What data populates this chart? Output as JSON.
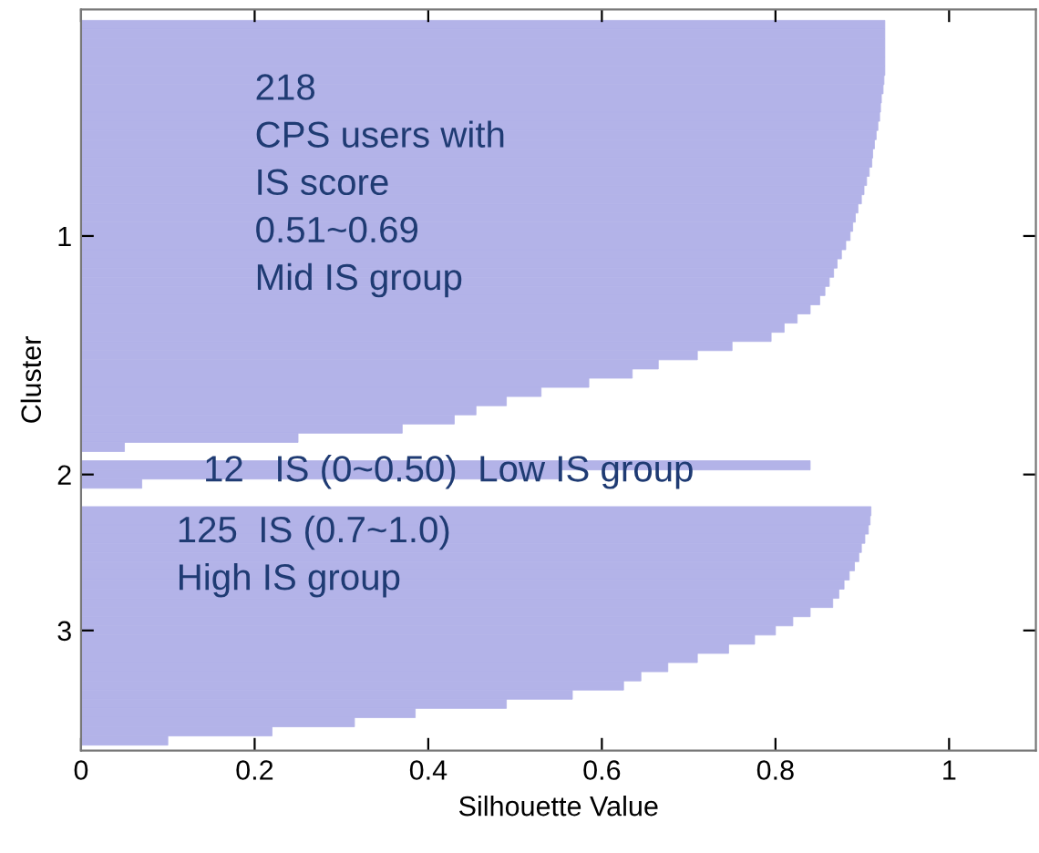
{
  "chart_data": {
    "type": "bar",
    "orientation": "horizontal",
    "color": "#b3b3e8",
    "xlabel": "Silhouette Value",
    "ylabel": "Cluster",
    "categories": [
      null,
      null,
      null,
      null,
      null,
      null,
      null,
      null,
      null,
      null,
      null,
      null,
      null,
      null,
      null,
      null,
      null,
      null,
      null,
      null,
      null,
      null,
      null,
      "1",
      null,
      null,
      null,
      null,
      null,
      null,
      null,
      null,
      null,
      null,
      null,
      null,
      null,
      null,
      null,
      null,
      null,
      null,
      null,
      null,
      null,
      null,
      null,
      null,
      null,
      "2",
      null,
      null,
      null,
      null,
      null,
      null,
      null,
      null,
      null,
      null,
      null,
      null,
      null,
      null,
      null,
      null,
      "3",
      null,
      null,
      null,
      null,
      null,
      null,
      null,
      null,
      null,
      null,
      null,
      null
    ],
    "values": [
      0.926,
      0.926,
      0.926,
      0.926,
      0.926,
      0.926,
      0.925,
      0.924,
      0.922,
      0.921,
      0.92,
      0.918,
      0.916,
      0.914,
      0.912,
      0.911,
      0.908,
      0.905,
      0.902,
      0.899,
      0.895,
      0.892,
      0.889,
      0.886,
      0.881,
      0.876,
      0.871,
      0.867,
      0.862,
      0.857,
      0.851,
      0.84,
      0.825,
      0.81,
      0.795,
      0.75,
      0.71,
      0.665,
      0.635,
      0.585,
      0.53,
      0.49,
      0.455,
      0.43,
      0.37,
      0.25,
      0.05,
      null,
      0.84,
      0.55,
      0.07,
      null,
      null,
      0.91,
      0.909,
      0.907,
      0.903,
      0.899,
      0.896,
      0.891,
      0.885,
      0.879,
      0.873,
      0.866,
      0.84,
      0.82,
      0.8,
      0.776,
      0.746,
      0.71,
      0.676,
      0.645,
      0.625,
      0.566,
      0.49,
      0.385,
      0.315,
      0.22,
      0.1
    ],
    "xlim": [
      0,
      1.1
    ],
    "xticks": [
      0,
      0.2,
      0.4,
      0.6,
      0.8,
      1
    ],
    "grid": false,
    "legend": false,
    "annotations": [
      "218\nCPS users with\nIS score\n0.51~0.69\nMid IS group",
      "12   IS (0~0.50)  Low IS group",
      "125  IS (0.7~1.0)\nHigh IS group"
    ]
  }
}
